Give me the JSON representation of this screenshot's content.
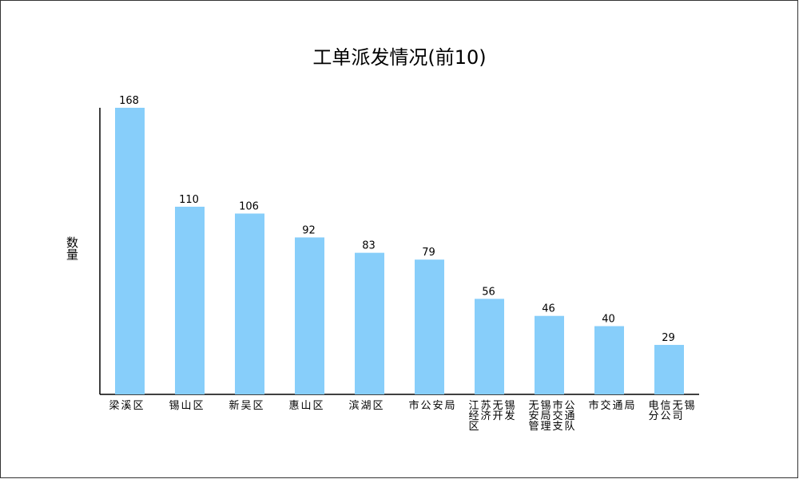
{
  "chart_data": {
    "type": "bar",
    "title": "工单派发情况(前10)",
    "y_label": "数量",
    "categories": [
      "梁溪区",
      "锡山区",
      "新吴区",
      "惠山区",
      "滨湖区",
      "市公安局",
      "江苏无锡经济开发区",
      "无锡市公安局交通管理支队",
      "市交通局",
      "电信无锡分公司"
    ],
    "values": [
      168,
      110,
      106,
      92,
      83,
      79,
      56,
      46,
      40,
      29
    ],
    "color": "#87cefa",
    "ylim": [
      0,
      168
    ]
  }
}
